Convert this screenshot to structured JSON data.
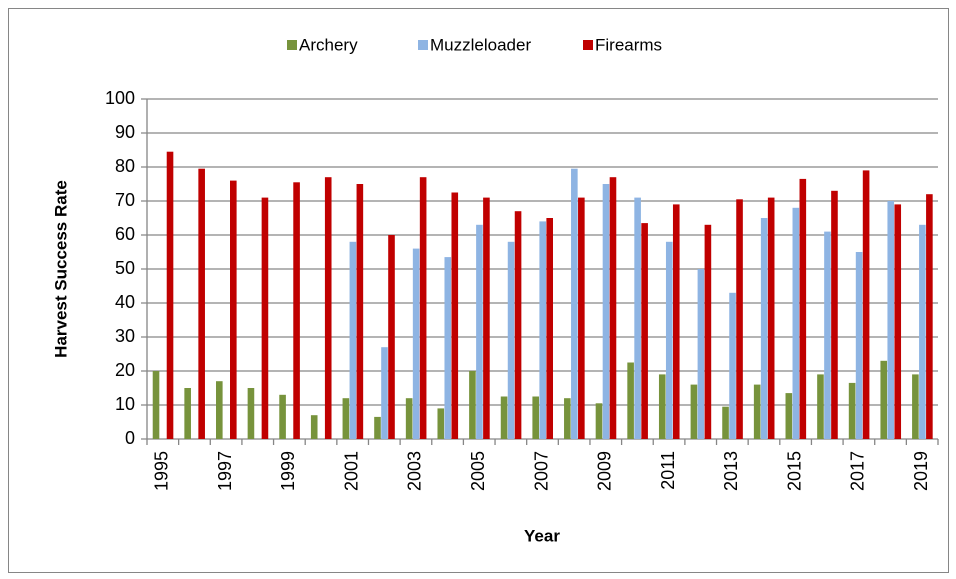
{
  "chart_data": {
    "type": "bar",
    "y_label": "Harvest Success Rate",
    "x_label": "Year",
    "categories": [
      "1995",
      null,
      "1997",
      null,
      "1999",
      null,
      "2001",
      null,
      "2003",
      null,
      "2005",
      null,
      "2007",
      null,
      "2009",
      null,
      "2011",
      null,
      "2013",
      null,
      "2015",
      null,
      "2017",
      null,
      "2019"
    ],
    "series": [
      {
        "name": "Archery",
        "color": "#77933c",
        "values": [
          20,
          15,
          17,
          15,
          13,
          7,
          12,
          6.5,
          12,
          9,
          20,
          12.5,
          12.5,
          12,
          10.5,
          22.5,
          19,
          16,
          9.5,
          16,
          13.5,
          19,
          16.5,
          23,
          19
        ]
      },
      {
        "name": "Muzzleloader",
        "color": "#8eb4e3",
        "values": [
          null,
          null,
          null,
          null,
          null,
          null,
          58,
          27,
          56,
          53.5,
          63,
          58,
          64,
          79.5,
          75,
          71,
          58,
          50,
          43,
          65,
          68,
          61,
          55,
          70,
          63
        ]
      },
      {
        "name": "Firearms",
        "color": "#c00000",
        "values": [
          84.5,
          79.5,
          76,
          71,
          75.5,
          77,
          75,
          60,
          77,
          72.5,
          71,
          67,
          65,
          71,
          77,
          63.5,
          69,
          63,
          70.5,
          71,
          76.5,
          73,
          79,
          69,
          72
        ]
      }
    ],
    "ylim": [
      0,
      100
    ],
    "yticks": [
      0,
      10,
      20,
      30,
      40,
      50,
      60,
      70,
      80,
      90,
      100
    ],
    "grid": true,
    "legend": "top"
  }
}
